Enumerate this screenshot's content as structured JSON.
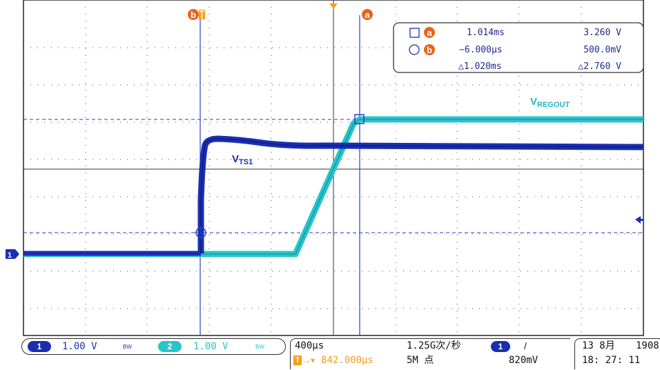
{
  "cursor_readout": {
    "row_a": {
      "time": "1.014ms",
      "voltage": "3.260 V"
    },
    "row_b": {
      "time": "−6.000μs",
      "voltage": "500.0mV"
    },
    "row_delta": {
      "time": "△1.020ms",
      "voltage": "△2.760 V"
    }
  },
  "cursor_labels": {
    "a": "a",
    "b": "b"
  },
  "trace_labels": {
    "vregout_main": "V",
    "vregout_sub": "REGOUT",
    "vts1_main": "V",
    "vts1_sub": "TS1"
  },
  "channel1": {
    "badge": "1",
    "scale": "1.00 V",
    "bw": "BW",
    "color": "#1a2fb0"
  },
  "channel2": {
    "badge": "2",
    "scale": "1.00 V",
    "bw": "BW",
    "color": "#27c4cc"
  },
  "timebase": {
    "scale": "400μs",
    "trigger_delay": "842.000μs"
  },
  "acquisition": {
    "rate": "1.25G次/秒",
    "points": "5M 点"
  },
  "trigger": {
    "channel": "1",
    "slope": "/",
    "level": "820mV"
  },
  "datetime": {
    "date": "13 8月",
    "year": "1908",
    "time": "18: 27: 11"
  },
  "ground_marker": "1"
}
